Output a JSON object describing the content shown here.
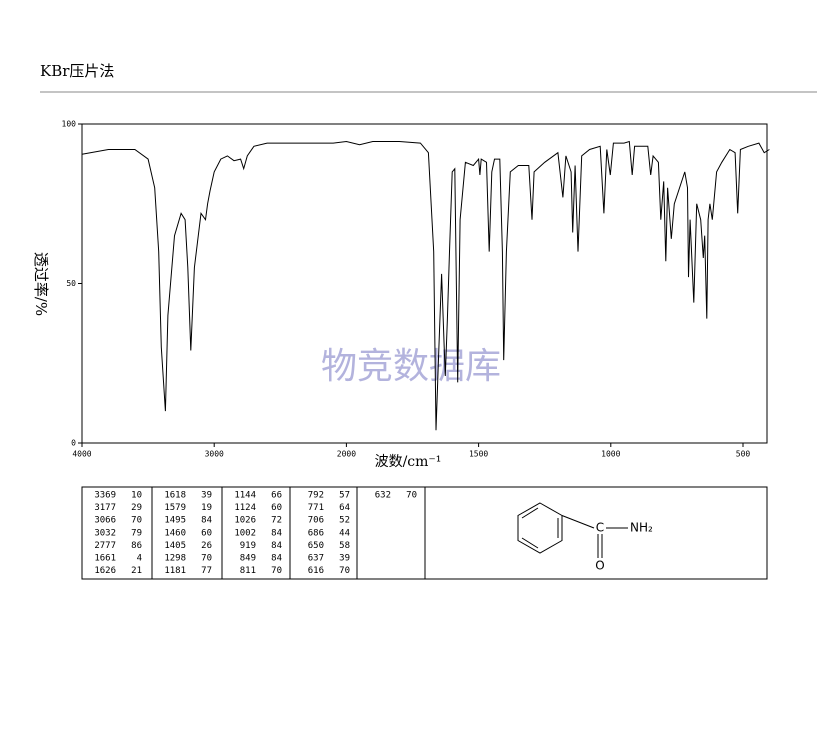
{
  "header": {
    "title": "KBr压片法"
  },
  "chart_data": {
    "type": "line",
    "ylabel": "透过率/%",
    "xlabel": "波数/cm⁻¹",
    "watermark": "物竞数据库",
    "x": [
      4000,
      3800,
      3600,
      3500,
      3450,
      3420,
      3400,
      3369,
      3350,
      3300,
      3250,
      3220,
      3200,
      3177,
      3150,
      3100,
      3066,
      3050,
      3032,
      3000,
      2950,
      2900,
      2850,
      2800,
      2777,
      2750,
      2700,
      2600,
      2400,
      2200,
      2100,
      2000,
      1950,
      1900,
      1800,
      1720,
      1690,
      1670,
      1661,
      1650,
      1640,
      1630,
      1626,
      1618,
      1610,
      1600,
      1590,
      1579,
      1570,
      1550,
      1520,
      1500,
      1495,
      1490,
      1470,
      1460,
      1450,
      1440,
      1420,
      1410,
      1405,
      1395,
      1380,
      1350,
      1310,
      1298,
      1290,
      1250,
      1200,
      1181,
      1170,
      1150,
      1144,
      1135,
      1124,
      1110,
      1080,
      1040,
      1026,
      1015,
      1002,
      990,
      950,
      930,
      919,
      910,
      860,
      849,
      840,
      820,
      811,
      800,
      792,
      785,
      771,
      760,
      720,
      710,
      706,
      700,
      686,
      675,
      660,
      650,
      645,
      637,
      632,
      625,
      616,
      600,
      580,
      550,
      530,
      520,
      510,
      480,
      440,
      420,
      400
    ],
    "values": [
      90.5,
      92,
      92,
      89,
      80,
      60,
      30,
      10,
      40,
      65,
      72,
      70,
      55,
      29,
      55,
      72,
      70,
      75,
      79,
      85,
      89,
      90,
      88.5,
      89,
      86,
      90,
      93,
      94,
      94,
      94,
      94,
      94.5,
      93.5,
      94.5,
      94.5,
      94,
      91,
      60,
      4,
      30,
      53,
      30,
      21,
      39,
      60,
      85,
      86,
      19,
      70,
      88,
      87,
      89,
      84,
      89,
      88,
      60,
      85,
      89,
      89,
      60,
      26,
      60,
      85,
      87,
      87,
      70,
      85,
      88,
      91,
      77,
      90,
      85,
      66,
      87,
      60,
      90,
      92,
      93,
      72,
      92,
      84,
      94,
      94,
      94.5,
      84,
      93,
      93,
      84,
      90,
      88,
      70,
      82,
      57,
      80,
      64,
      75,
      85,
      80,
      52,
      70,
      44,
      75,
      70,
      58,
      65,
      39,
      70,
      75,
      70,
      85,
      88,
      92,
      91,
      72,
      92,
      93,
      94,
      91,
      92
    ],
    "color": "#000000",
    "xlim": [
      4000,
      400
    ],
    "xticks": [
      4000,
      3000,
      2000,
      1500,
      1000,
      500
    ],
    "ylim": [
      0,
      100
    ],
    "yticks": [
      0,
      50,
      100
    ],
    "grid": false
  },
  "peak_table": [
    [
      [
        3369,
        10
      ],
      [
        3177,
        29
      ],
      [
        3066,
        70
      ],
      [
        3032,
        79
      ],
      [
        2777,
        86
      ],
      [
        1661,
        4
      ],
      [
        1626,
        21
      ]
    ],
    [
      [
        1618,
        39
      ],
      [
        1579,
        19
      ],
      [
        1495,
        84
      ],
      [
        1460,
        60
      ],
      [
        1405,
        26
      ],
      [
        1298,
        70
      ],
      [
        1181,
        77
      ]
    ],
    [
      [
        1144,
        66
      ],
      [
        1124,
        60
      ],
      [
        1026,
        72
      ],
      [
        1002,
        84
      ],
      [
        919,
        84
      ],
      [
        849,
        84
      ],
      [
        811,
        70
      ]
    ],
    [
      [
        792,
        57
      ],
      [
        771,
        64
      ],
      [
        706,
        52
      ],
      [
        686,
        44
      ],
      [
        650,
        58
      ],
      [
        637,
        39
      ],
      [
        616,
        70
      ]
    ],
    [
      [
        632,
        70
      ]
    ]
  ],
  "structure": {
    "carbon": "C",
    "oxygen": "O",
    "amine": "NH₂"
  }
}
